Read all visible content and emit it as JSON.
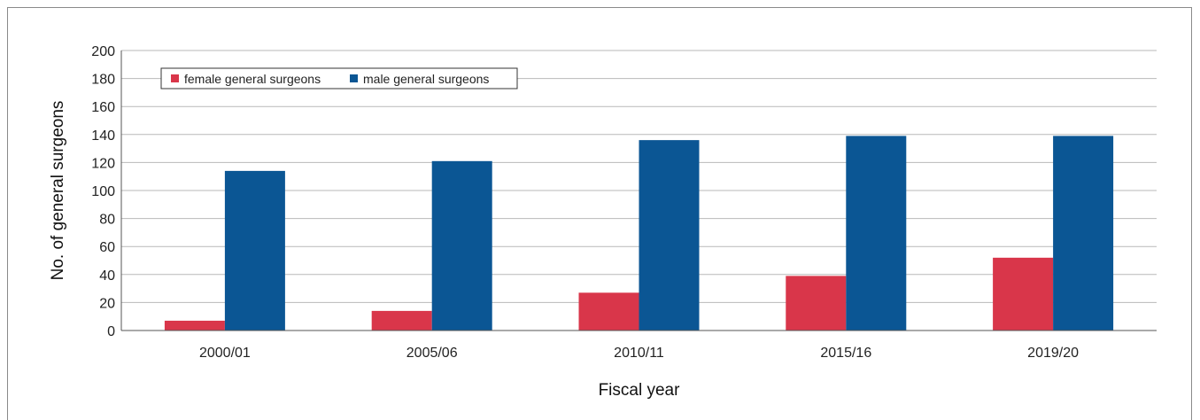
{
  "chart_data": {
    "type": "bar",
    "title": "",
    "xlabel": "Fiscal year",
    "ylabel": "No. of general surgeons",
    "categories": [
      "2000/01",
      "2005/06",
      "2010/11",
      "2015/16",
      "2019/20"
    ],
    "series": [
      {
        "name": "female general surgeons",
        "color": "#d9364a",
        "values": [
          7,
          14,
          27,
          39,
          52
        ]
      },
      {
        "name": "male general surgeons",
        "color": "#0b5694",
        "values": [
          114,
          121,
          136,
          139,
          139
        ]
      }
    ],
    "ylim": [
      0,
      200
    ],
    "yticks": [
      0,
      20,
      40,
      60,
      80,
      100,
      120,
      140,
      160,
      180,
      200
    ],
    "grid": true,
    "legend_position": "top-left"
  }
}
